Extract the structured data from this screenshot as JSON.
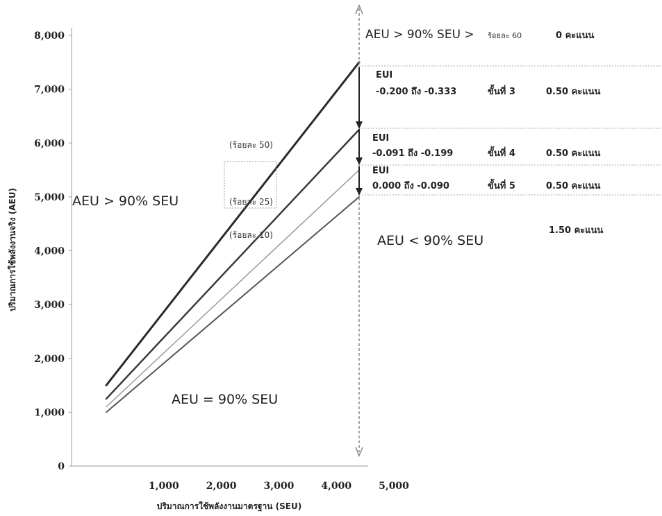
{
  "chart_data": {
    "type": "line",
    "xlabel": "ปริมาณการใช้พลังงานมาตรฐาน (SEU)",
    "ylabel": "ปริมาณการใช้พลังงานจริง (AEU)",
    "x": [
      1000,
      5000
    ],
    "x_ticks": [
      "1,000",
      "2,000",
      "3,000",
      "4,000",
      "5,000"
    ],
    "x_tick_values": [
      1000,
      2000,
      3000,
      4000,
      5000
    ],
    "y_ticks": [
      "0",
      "1,000",
      "2,000",
      "3,000",
      "4,000",
      "5,000",
      "6,000",
      "7,000",
      "8,000"
    ],
    "y_tick_values": [
      0,
      1000,
      2000,
      3000,
      4000,
      5000,
      6000,
      7000,
      8000
    ],
    "xlim": [
      0,
      5500
    ],
    "ylim": [
      0,
      8200
    ],
    "series": [
      {
        "name": "ร้อยละ 50",
        "values": [
          1500,
          7500
        ],
        "color": "#2a2a2a",
        "width": 3
      },
      {
        "name": "ร้อยละ 25",
        "values": [
          1250,
          6250
        ],
        "color": "#3a3a3a",
        "width": 2.5
      },
      {
        "name": "ร้อยละ 10",
        "values": [
          1100,
          5500
        ],
        "color": "#9a9a9a",
        "width": 1.5
      },
      {
        "name": "",
        "values": [
          1000,
          5000
        ],
        "color": "#555555",
        "width": 2
      }
    ],
    "series_labels": [
      "(ร้อยละ 50)",
      "(ร้อยละ 25)",
      "(ร้อยละ 10)"
    ],
    "annotations": {
      "aeu_gt_left": "AEU > 90% SEU",
      "aeu_eq": "AEU = 90% SEU",
      "aeu_lt_right": "AEU < 90% SEU",
      "top_right": {
        "main": "AEU > 90% SEU >",
        "pct": "ร้อยละ 60",
        "score": "0 คะแนน"
      },
      "levels": [
        {
          "title": "EUI",
          "range": "-0.200 ถึง -0.333",
          "step": "ขั้นที่ 3",
          "score": "0.50 คะแนน"
        },
        {
          "title": "EUI",
          "range": "-0.091 ถึง -0.199",
          "step": "ขั้นที่ 4",
          "score": "0.50 คะแนน"
        },
        {
          "title": "EUI",
          "range": "0.000 ถึง -0.090",
          "step": "ขั้นที่ 5",
          "score": "0.50 คะแนน"
        }
      ],
      "total": "1.50 คะแนน"
    }
  }
}
